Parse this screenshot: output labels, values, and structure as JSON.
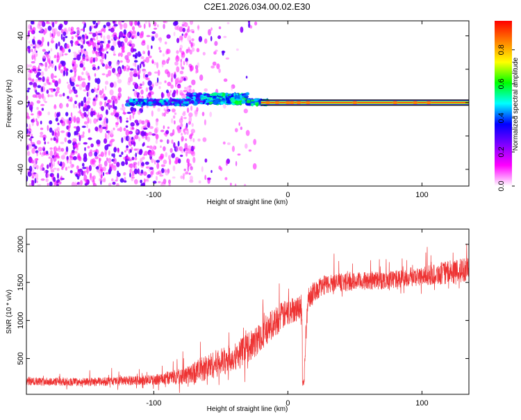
{
  "title": "C2E1.2026.034.00.02.E30",
  "chart_data": [
    {
      "type": "heatmap",
      "xlabel": "Height of straight line (km)",
      "ylabel": "Frequency (Hz)",
      "xlim": [
        -195,
        135
      ],
      "ylim": [
        -50,
        49
      ],
      "xticks": [
        -100,
        0,
        100
      ],
      "xtick_labels": [
        "-100",
        "0",
        "100"
      ],
      "yticks": [
        -40,
        -20,
        0,
        20,
        40
      ],
      "ytick_labels": [
        "-40",
        "-20",
        "0",
        "20",
        "40"
      ],
      "colorbar": {
        "label": "Normalized spectral amplitude",
        "range": [
          0.0,
          0.97
        ],
        "ticks": [
          0.0,
          0.2,
          0.4,
          0.6,
          0.8
        ],
        "tick_labels": [
          "0.0",
          "0.2",
          "0.4",
          "0.6",
          "0.8"
        ],
        "colors": [
          "#ffffff",
          "#ff00ff",
          "#8000ff",
          "#0000ff",
          "#00ffff",
          "#00ff00",
          "#ffff00",
          "#ff8000",
          "#ff0000"
        ]
      },
      "features": {
        "noise_region_km": [
          -195,
          -70
        ],
        "sparse_noise_km": [
          -70,
          -20
        ],
        "signal_line_freq_hz": 0,
        "signal_start_km": -120,
        "strong_signal_start_km": -20
      }
    },
    {
      "type": "line",
      "xlabel": "Height of straight line (km)",
      "ylabel": "SNR (10 * v/v)",
      "xlim": [
        -195,
        135
      ],
      "ylim": [
        30,
        2200
      ],
      "xticks": [
        -100,
        0,
        100
      ],
      "xtick_labels": [
        "-100",
        "0",
        "100"
      ],
      "yticks": [
        500,
        1000,
        1500,
        2000
      ],
      "ytick_labels": [
        "500",
        "1000",
        "1500",
        "2000"
      ],
      "color": "#ee3333",
      "series": [
        {
          "name": "SNR",
          "x": [
            -195,
            -150,
            -100,
            -75,
            -60,
            -40,
            -25,
            -15,
            -5,
            5,
            10,
            12,
            15,
            20,
            25,
            30,
            40,
            60,
            80,
            100,
            115,
            125,
            135
          ],
          "y": [
            200,
            190,
            220,
            280,
            390,
            520,
            700,
            900,
            1050,
            1150,
            1200,
            250,
            1300,
            1380,
            1450,
            1480,
            1500,
            1520,
            1540,
            1580,
            1620,
            1640,
            1680
          ],
          "spread": [
            55,
            55,
            65,
            120,
            180,
            180,
            200,
            200,
            190,
            170,
            160,
            60,
            150,
            140,
            130,
            130,
            120,
            120,
            120,
            120,
            150,
            160,
            160
          ]
        }
      ]
    }
  ]
}
